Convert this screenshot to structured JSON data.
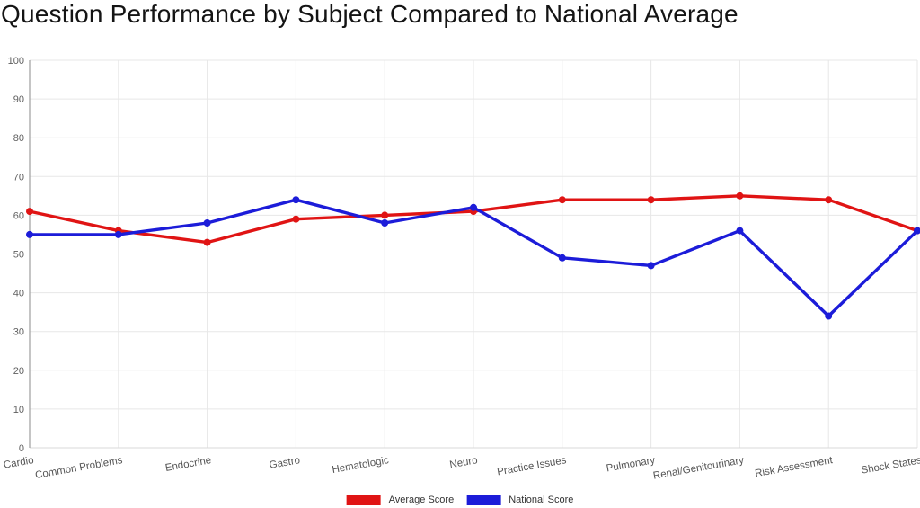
{
  "title": "Question Performance by Subject Compared to National Average",
  "colors": {
    "average_score": "#e01414",
    "national_score": "#1c1cd9",
    "grid": "#e7e7e7",
    "y_axis_line": "#9e9e9e",
    "x_axis_line": "#d9d9d9",
    "tick_label": "#5f5f5f",
    "title_text": "#141414",
    "legend_text": "#333333",
    "background": "#ffffff"
  },
  "chart_data": {
    "type": "line",
    "title": "Question Performance by Subject Compared to National Average",
    "categories": [
      "Cardio",
      "Common Problems",
      "Endocrine",
      "Gastro",
      "Hematologic",
      "Neuro",
      "Practice Issues",
      "Pulmonary",
      "Renal/Genitourinary",
      "Risk Assessment",
      "Shock States"
    ],
    "series": [
      {
        "name": "Average Score",
        "color": "#e01414",
        "values": [
          61,
          56,
          53,
          59,
          60,
          61,
          64,
          64,
          65,
          64,
          56
        ]
      },
      {
        "name": "National Score",
        "color": "#1c1cd9",
        "values": [
          55,
          55,
          58,
          64,
          58,
          62,
          49,
          47,
          56,
          34,
          56
        ]
      }
    ],
    "xlabel": "",
    "ylabel": "",
    "ylim": [
      0,
      100
    ],
    "ytick_step": 10,
    "yticks": [
      0,
      10,
      20,
      30,
      40,
      50,
      60,
      70,
      80,
      90,
      100
    ],
    "grid": true,
    "legend_position": "bottom",
    "x_label_rotation_deg": -10
  }
}
